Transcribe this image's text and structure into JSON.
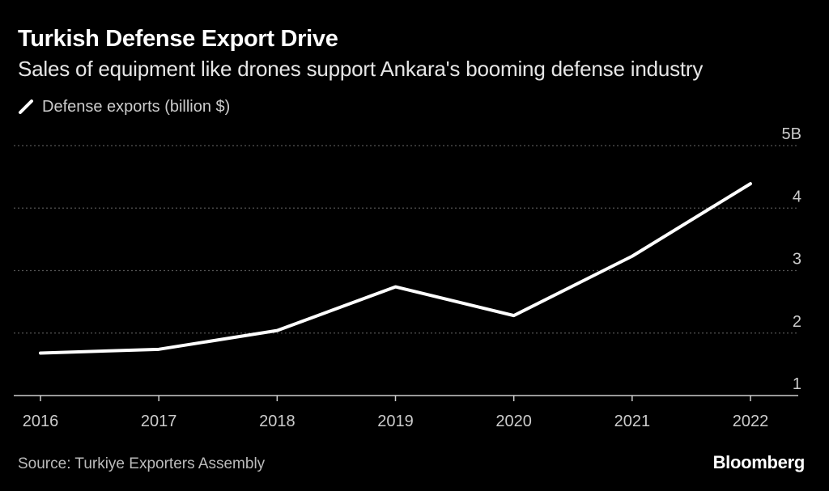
{
  "chart_data": {
    "type": "line",
    "title": "Turkish Defense Export Drive",
    "subtitle": "Sales of equipment like drones support Ankara's booming defense industry",
    "x": [
      "2016",
      "2017",
      "2018",
      "2019",
      "2020",
      "2021",
      "2022"
    ],
    "series": [
      {
        "name": "Defense exports (billion $)",
        "values": [
          1.68,
          1.74,
          2.04,
          2.74,
          2.28,
          3.23,
          4.39
        ]
      }
    ],
    "ylim": [
      1,
      5
    ],
    "yticks": [
      {
        "value": 5,
        "label": "5B"
      },
      {
        "value": 4,
        "label": "4"
      },
      {
        "value": 3,
        "label": "3"
      },
      {
        "value": 2,
        "label": "2"
      },
      {
        "value": 1,
        "label": "1"
      }
    ],
    "grid": true,
    "xlabel": "",
    "ylabel": "",
    "source": "Source: Turkiye Exporters Assembly",
    "brand": "Bloomberg"
  },
  "colors": {
    "background": "#000000",
    "line": "#ffffff",
    "grid": "#555555",
    "axis": "#cccccc"
  }
}
